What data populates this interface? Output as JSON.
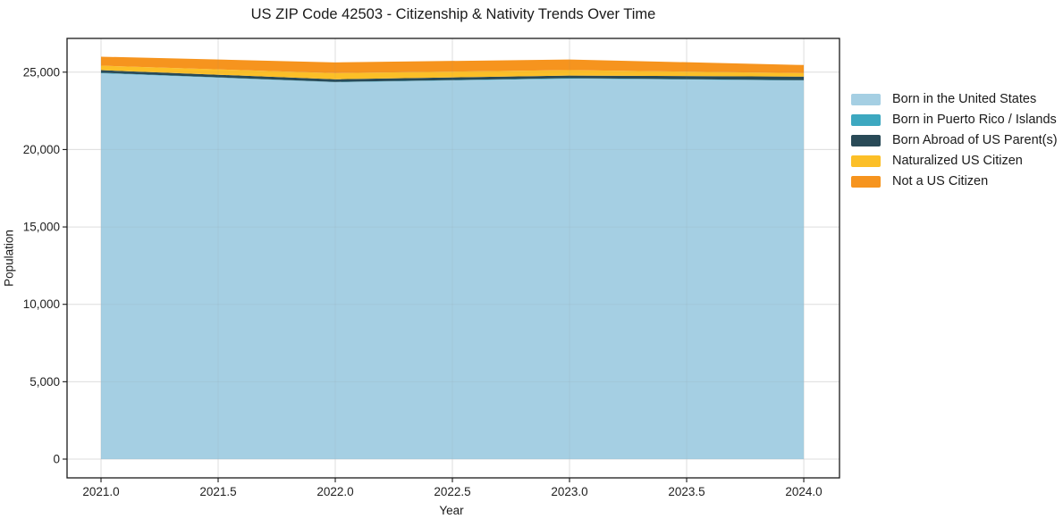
{
  "chart_data": {
    "type": "area",
    "stacked": true,
    "title": "US ZIP Code 42503 - Citizenship & Nativity Trends Over Time",
    "xlabel": "Year",
    "ylabel": "Population",
    "x": [
      2021,
      2022,
      2023,
      2024
    ],
    "series": [
      {
        "name": "Born in the United States",
        "color": "#a5cfe3",
        "values": [
          24930,
          24350,
          24580,
          24460
        ]
      },
      {
        "name": "Born in Puerto Rico / Islands",
        "color": "#3da8c0",
        "values": [
          30,
          20,
          30,
          20
        ]
      },
      {
        "name": "Born Abroad of US Parent(s)",
        "color": "#294a57",
        "values": [
          170,
          170,
          170,
          230
        ]
      },
      {
        "name": "Naturalized US Citizen",
        "color": "#fcbf27",
        "values": [
          290,
          400,
          350,
          230
        ]
      },
      {
        "name": "Not a US Citizen",
        "color": "#f6941e",
        "values": [
          580,
          690,
          690,
          520
        ]
      }
    ],
    "xlim": [
      2020.855,
      2024.1525
    ],
    "ylim": [
      -1212,
      27180
    ],
    "xticks": [
      2021.0,
      2021.5,
      2022.0,
      2022.5,
      2023.0,
      2023.5,
      2024.0
    ],
    "x_tick_labels": [
      "2021.0",
      "2021.5",
      "2022.0",
      "2022.5",
      "2023.0",
      "2023.5",
      "2024.0"
    ],
    "yticks": [
      0,
      5000,
      10000,
      15000,
      20000,
      25000
    ],
    "y_tick_labels": [
      "0",
      "5,000",
      "10,000",
      "15,000",
      "20,000",
      "25,000"
    ],
    "grid": true,
    "grid_color": "#e7e7e7",
    "frame_color": "#1a1a1a",
    "legend_position": "right-outside"
  }
}
